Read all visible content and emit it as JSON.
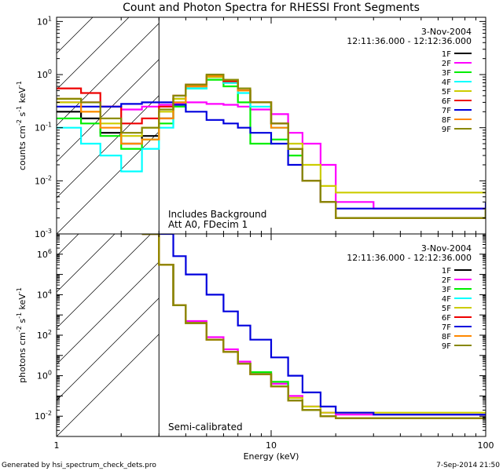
{
  "title": "Count and Photon Spectra for RHESSI Front Segments",
  "footer": {
    "left": "Generated by hsi_spectrum_check_dets.pro",
    "right": "7-Sep-2014 21:50"
  },
  "colors": {
    "1F": "#000000",
    "2F": "#ff00ff",
    "3F": "#00ee00",
    "4F": "#00ffff",
    "5F": "#cccc00",
    "6F": "#ee0000",
    "7F": "#0000dd",
    "8F": "#ff8800",
    "9F": "#888800"
  },
  "chart_data": [
    {
      "type": "line",
      "panel": "top",
      "date": "3-Nov-2004",
      "time_range": "12:11:36.000 - 12:12:36.000",
      "ylabel": "counts cm^-2 s^-1 keV^-1",
      "ylabel_parts": {
        "main": "counts cm",
        "e1": "-2",
        "s": " s",
        "e2": "-1",
        "k": " keV",
        "e3": "-1"
      },
      "xscale": "log",
      "yscale": "log",
      "xlim": [
        1,
        100
      ],
      "ylim": [
        0.001,
        12
      ],
      "yticks": [
        {
          "base": "10",
          "exp": "-3",
          "v": 0.001
        },
        {
          "base": "10",
          "exp": "-2",
          "v": 0.01
        },
        {
          "base": "10",
          "exp": "-1",
          "v": 0.1
        },
        {
          "base": "10",
          "exp": "0",
          "v": 1
        },
        {
          "base": "10",
          "exp": "1",
          "v": 10
        }
      ],
      "annotations": [
        "Includes Background",
        "Att A0, FDecim 1"
      ],
      "hatch_region": [
        1,
        3
      ],
      "legend": [
        "1F",
        "2F",
        "3F",
        "4F",
        "5F",
        "6F",
        "7F",
        "8F",
        "9F"
      ],
      "series": [
        {
          "name": "1F",
          "x": [
            1,
            1.3,
            1.6,
            2,
            2.5,
            3,
            3.5,
            4,
            5,
            6,
            7,
            8,
            10,
            12,
            14,
            17,
            20,
            30,
            50,
            100
          ],
          "values": [
            0.2,
            0.15,
            0.08,
            0.05,
            0.07,
            0.15,
            0.35,
            0.6,
            0.9,
            0.7,
            0.5,
            0.3,
            0.12,
            0.04,
            0.01,
            0.004,
            0.002,
            0.002,
            0.002,
            0.003
          ]
        },
        {
          "name": "2F",
          "x": [
            1,
            1.3,
            1.6,
            2,
            2.5,
            3,
            3.5,
            4,
            5,
            6,
            7,
            8,
            10,
            12,
            14,
            17,
            20,
            30,
            50,
            100
          ],
          "values": [
            0.3,
            0.3,
            0.25,
            0.22,
            0.25,
            0.27,
            0.28,
            0.3,
            0.28,
            0.27,
            0.25,
            0.22,
            0.18,
            0.08,
            0.05,
            0.02,
            0.004,
            0.003,
            0.003,
            0.003
          ]
        },
        {
          "name": "3F",
          "x": [
            1,
            1.3,
            1.6,
            2,
            2.5,
            3,
            3.5,
            4,
            5,
            6,
            7,
            8,
            10,
            12,
            14,
            17,
            20,
            30,
            50,
            100
          ],
          "values": [
            0.15,
            0.12,
            0.07,
            0.04,
            0.06,
            0.12,
            0.25,
            0.55,
            0.8,
            0.6,
            0.3,
            0.05,
            0.06,
            0.03,
            0.01,
            0.004,
            0.002,
            0.002,
            0.002,
            0.003
          ]
        },
        {
          "name": "4F",
          "x": [
            1,
            1.3,
            1.6,
            2,
            2.5,
            3,
            3.5,
            4,
            5,
            6,
            7,
            8,
            10,
            12,
            14,
            17,
            20,
            30,
            50,
            100
          ],
          "values": [
            0.1,
            0.05,
            0.03,
            0.015,
            0.04,
            0.1,
            0.3,
            0.55,
            0.9,
            0.7,
            0.45,
            0.25,
            0.1,
            0.04,
            0.01,
            0.004,
            0.002,
            0.002,
            0.002,
            0.003
          ]
        },
        {
          "name": "5F",
          "x": [
            1,
            1.3,
            1.6,
            2,
            2.5,
            3,
            3.5,
            4,
            5,
            6,
            7,
            8,
            10,
            12,
            14,
            17,
            20,
            30,
            50,
            100
          ],
          "values": [
            0.3,
            0.2,
            0.12,
            0.07,
            0.1,
            0.2,
            0.35,
            0.6,
            0.9,
            0.75,
            0.5,
            0.3,
            0.12,
            0.05,
            0.02,
            0.008,
            0.006,
            0.006,
            0.006,
            0.006
          ]
        },
        {
          "name": "6F",
          "x": [
            1,
            1.3,
            1.6,
            2,
            2.5,
            3,
            3.5,
            4,
            5,
            6,
            7,
            8,
            10,
            12,
            14,
            17,
            20,
            30,
            50,
            100
          ],
          "values": [
            0.55,
            0.45,
            0.25,
            0.12,
            0.15,
            0.25,
            0.4,
            0.65,
            0.95,
            0.75,
            0.5,
            0.3,
            0.12,
            0.04,
            0.01,
            0.004,
            0.002,
            0.002,
            0.002,
            0.003
          ]
        },
        {
          "name": "7F",
          "x": [
            1,
            1.3,
            1.6,
            2,
            2.5,
            3,
            3.5,
            4,
            5,
            6,
            7,
            8,
            10,
            12,
            14,
            17,
            20,
            30,
            50,
            100
          ],
          "values": [
            0.25,
            0.25,
            0.25,
            0.28,
            0.3,
            0.3,
            0.27,
            0.2,
            0.14,
            0.12,
            0.1,
            0.08,
            0.05,
            0.02,
            0.01,
            0.004,
            0.003,
            0.003,
            0.003,
            0.004
          ]
        },
        {
          "name": "8F",
          "x": [
            1,
            1.3,
            1.6,
            2,
            2.5,
            3,
            3.5,
            4,
            5,
            6,
            7,
            8,
            10,
            12,
            14,
            17,
            20,
            30,
            50,
            100
          ],
          "values": [
            0.35,
            0.2,
            0.1,
            0.05,
            0.06,
            0.15,
            0.3,
            0.6,
            0.95,
            0.8,
            0.5,
            0.3,
            0.1,
            0.04,
            0.01,
            0.004,
            0.002,
            0.002,
            0.002,
            0.003
          ]
        },
        {
          "name": "9F",
          "x": [
            1,
            1.3,
            1.6,
            2,
            2.5,
            3,
            3.5,
            4,
            5,
            6,
            7,
            8,
            10,
            12,
            14,
            17,
            20,
            30,
            50,
            100
          ],
          "values": [
            0.35,
            0.3,
            0.15,
            0.08,
            0.1,
            0.22,
            0.4,
            0.65,
            1.0,
            0.8,
            0.55,
            0.3,
            0.12,
            0.04,
            0.01,
            0.004,
            0.002,
            0.002,
            0.002,
            0.003
          ]
        }
      ]
    },
    {
      "type": "line",
      "panel": "bottom",
      "date": "3-Nov-2004",
      "time_range": "12:11:36.000 - 12:12:36.000",
      "ylabel": "photons cm^-2 s^-1 keV^-1",
      "ylabel_parts": {
        "main": "photons cm",
        "e1": "-2",
        "s": " s",
        "e2": "-1",
        "k": " keV",
        "e3": "-1"
      },
      "xlabel": "Energy (keV)",
      "xscale": "log",
      "yscale": "log",
      "xlim": [
        1,
        100
      ],
      "ylim": [
        0.001,
        10000000
      ],
      "yticks": [
        {
          "base": "10",
          "exp": "-2",
          "v": 0.01
        },
        {
          "base": "10",
          "exp": "0",
          "v": 1
        },
        {
          "base": "10",
          "exp": "2",
          "v": 100
        },
        {
          "base": "10",
          "exp": "4",
          "v": 10000
        },
        {
          "base": "10",
          "exp": "6",
          "v": 1000000
        }
      ],
      "xticks": [
        {
          "label": "1",
          "v": 1
        },
        {
          "label": "10",
          "v": 10
        },
        {
          "label": "100",
          "v": 100
        }
      ],
      "annotations": [
        "Semi-calibrated"
      ],
      "hatch_region": [
        1,
        3
      ],
      "legend": [
        "1F",
        "2F",
        "3F",
        "4F",
        "5F",
        "6F",
        "7F",
        "8F",
        "9F"
      ],
      "series": [
        {
          "name": "1F",
          "x": [
            2.5,
            3,
            3.5,
            4,
            5,
            6,
            7,
            8,
            10,
            12,
            14,
            17,
            20,
            30,
            50,
            100
          ],
          "values": [
            10000000,
            300000,
            3000,
            400,
            60,
            15,
            4,
            1.2,
            0.3,
            0.06,
            0.02,
            0.01,
            0.008,
            0.008,
            0.008,
            0.008
          ]
        },
        {
          "name": "2F",
          "x": [
            2.5,
            3,
            3.5,
            4,
            5,
            6,
            7,
            8,
            10,
            12,
            14,
            17,
            20,
            30,
            50,
            100
          ],
          "values": [
            10000000,
            300000,
            3000,
            500,
            80,
            20,
            5,
            1.5,
            0.4,
            0.1,
            0.03,
            0.015,
            0.012,
            0.012,
            0.012,
            0.012
          ]
        },
        {
          "name": "3F",
          "x": [
            2.5,
            3,
            3.5,
            4,
            5,
            6,
            7,
            8,
            10,
            12,
            14,
            17,
            20,
            30,
            50,
            100
          ],
          "values": [
            10000000,
            300000,
            3000,
            400,
            60,
            15,
            4,
            1.5,
            0.5,
            0.06,
            0.02,
            0.01,
            0.008,
            0.008,
            0.008,
            0.008
          ]
        },
        {
          "name": "4F",
          "x": [
            2.5,
            3,
            3.5,
            4,
            5,
            6,
            7,
            8,
            10,
            12,
            14,
            17,
            20,
            30,
            50,
            100
          ],
          "values": [
            10000000,
            300000,
            3000,
            400,
            60,
            15,
            4,
            1.2,
            0.3,
            0.06,
            0.02,
            0.01,
            0.008,
            0.008,
            0.008,
            0.008
          ]
        },
        {
          "name": "5F",
          "x": [
            2.5,
            3,
            3.5,
            4,
            5,
            6,
            7,
            8,
            10,
            12,
            14,
            17,
            20,
            30,
            50,
            100
          ],
          "values": [
            10000000,
            300000,
            3000,
            400,
            60,
            15,
            4,
            1.2,
            0.3,
            0.08,
            0.03,
            0.015,
            0.015,
            0.015,
            0.015,
            0.015
          ]
        },
        {
          "name": "6F",
          "x": [
            2.5,
            3,
            3.5,
            4,
            5,
            6,
            7,
            8,
            10,
            12,
            14,
            17,
            20,
            30,
            50,
            100
          ],
          "values": [
            10000000,
            300000,
            3000,
            400,
            60,
            15,
            4,
            1.2,
            0.3,
            0.06,
            0.02,
            0.01,
            0.008,
            0.008,
            0.008,
            0.008
          ]
        },
        {
          "name": "7F",
          "x": [
            2.5,
            3,
            3.5,
            4,
            5,
            6,
            7,
            8,
            10,
            12,
            14,
            17,
            20,
            30,
            50,
            100
          ],
          "values": [
            10000000,
            10000000,
            800000,
            100000,
            10000,
            1500,
            300,
            60,
            8,
            1,
            0.15,
            0.03,
            0.015,
            0.012,
            0.012,
            0.012
          ]
        },
        {
          "name": "8F",
          "x": [
            2.5,
            3,
            3.5,
            4,
            5,
            6,
            7,
            8,
            10,
            12,
            14,
            17,
            20,
            30,
            50,
            100
          ],
          "values": [
            10000000,
            300000,
            3000,
            400,
            60,
            15,
            4,
            1.2,
            0.3,
            0.06,
            0.02,
            0.01,
            0.008,
            0.008,
            0.008,
            0.008
          ]
        },
        {
          "name": "9F",
          "x": [
            2.5,
            3,
            3.5,
            4,
            5,
            6,
            7,
            8,
            10,
            12,
            14,
            17,
            20,
            30,
            50,
            100
          ],
          "values": [
            10000000,
            300000,
            3000,
            400,
            60,
            15,
            4,
            1.2,
            0.3,
            0.06,
            0.02,
            0.01,
            0.008,
            0.008,
            0.008,
            0.008
          ]
        }
      ]
    }
  ]
}
